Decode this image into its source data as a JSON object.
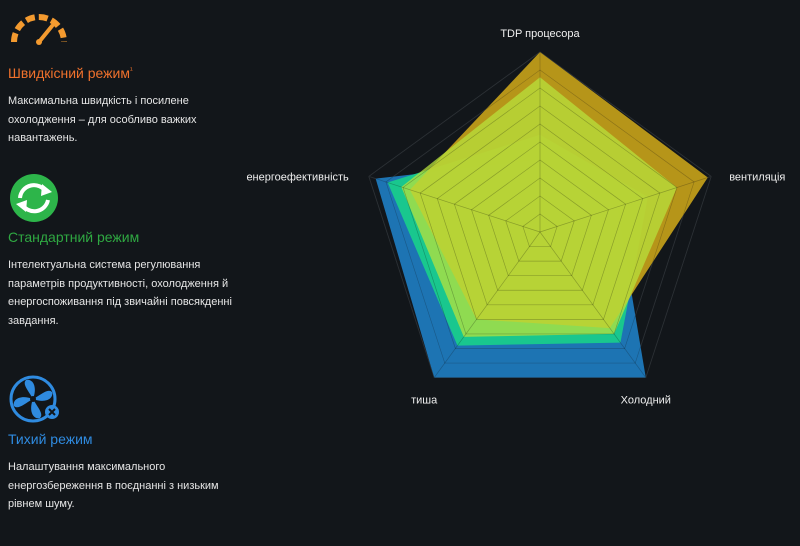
{
  "modes": [
    {
      "title": "Швидкісний режим",
      "title_mark": "¹",
      "icon": "speedometer-icon",
      "color": "#f0712c",
      "description": "Максимальна швидкість і посилене охолодження – для особливо важких навантажень."
    },
    {
      "title": "Стандартний режим",
      "icon": "refresh-cycle-icon",
      "color": "#2fa842",
      "description": "Інтелектуальна система регулювання параметрів продуктивності, охолодження й енергоспоживання під звичайні повсякденні завдання."
    },
    {
      "title": "Тихий режим",
      "icon": "fan-icon",
      "color": "#2f8be0",
      "description": "Налаштування максимального енергозбереження в поєднанні з низьким рівнем шуму."
    }
  ],
  "chart_data": {
    "type": "radar",
    "axes": [
      "TDP процесора",
      "вентиляція",
      "Холодний",
      "тиша",
      "енергоефективність"
    ],
    "range": [
      0,
      10
    ],
    "grid_levels": 10,
    "series": [
      {
        "color": "#1f7ec4",
        "values": [
          4.0,
          4.5,
          10.0,
          10.0,
          9.6
        ]
      },
      {
        "color": "#19d08a",
        "values": [
          5.4,
          6.3,
          7.6,
          7.8,
          8.9
        ]
      },
      {
        "color": "#c9a31a",
        "values": [
          10.0,
          9.8,
          6.6,
          6.0,
          7.6
        ]
      },
      {
        "color": "#b7e23c",
        "values": [
          8.6,
          8.0,
          7.0,
          7.2,
          8.1
        ]
      }
    ]
  }
}
